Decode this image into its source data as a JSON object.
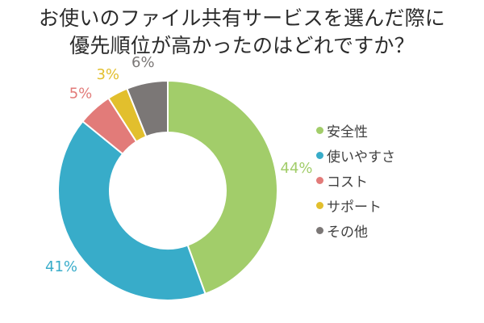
{
  "title": {
    "line1": "お使いのファイル共有サービスを選んだ際に",
    "line2": "優先順位が高かったのはどれですか？"
  },
  "chart_data": {
    "type": "pie",
    "donut": true,
    "categories": [
      "安全性",
      "使いやすさ",
      "コスト",
      "サポート",
      "その他"
    ],
    "values": [
      44,
      41,
      5,
      3,
      6
    ],
    "unit": "%",
    "data_labels": [
      "44%",
      "41%",
      "5%",
      "3%",
      "6%"
    ],
    "colors": [
      "#a2cd6a",
      "#38acc9",
      "#e27b79",
      "#e2bf2d",
      "#7b7776"
    ],
    "legend_position": "right"
  },
  "legend": {
    "items": [
      {
        "label": "安全性",
        "color": "#a2cd6a"
      },
      {
        "label": "使いやすさ",
        "color": "#38acc9"
      },
      {
        "label": "コスト",
        "color": "#e27b79"
      },
      {
        "label": "サポート",
        "color": "#e2bf2d"
      },
      {
        "label": "その他",
        "color": "#7b7776"
      }
    ]
  }
}
